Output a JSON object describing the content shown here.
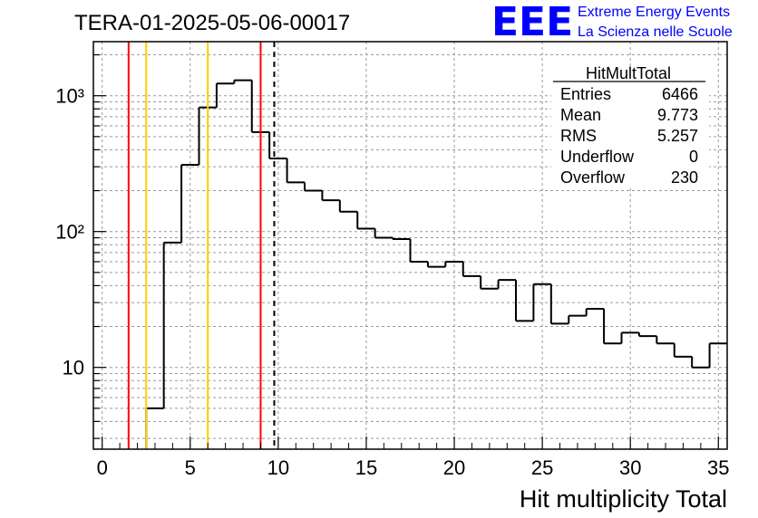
{
  "header": {
    "run_title": "TERA-01-2025-05-06-00017",
    "logo_text": "EEE",
    "logo_line1": "Extreme Energy Events",
    "logo_line2": "La Scienza nelle Scuole"
  },
  "stats_box": {
    "title": "HitMultTotal",
    "rows": [
      {
        "label": "Entries",
        "value": "6466"
      },
      {
        "label": "Mean",
        "value": "9.773"
      },
      {
        "label": "RMS",
        "value": "5.257"
      },
      {
        "label": "Underflow",
        "value": "0"
      },
      {
        "label": "Overflow",
        "value": "230"
      }
    ]
  },
  "chart_data": {
    "type": "histogram",
    "title": "TERA-01-2025-05-06-00017",
    "xlabel": "Hit multiplicity Total",
    "ylabel": "",
    "y_scale": "log",
    "xlim": [
      -0.5,
      35.5
    ],
    "ylim": [
      2.5,
      2500
    ],
    "grid": true,
    "x_ticks": [
      0,
      5,
      10,
      15,
      20,
      25,
      30,
      35
    ],
    "y_ticks": [
      {
        "value": 10,
        "label": "10"
      },
      {
        "value": 100,
        "label": "10²"
      },
      {
        "value": 1000,
        "label": "10³"
      }
    ],
    "bin_edges": [
      -0.5,
      0.5,
      1.5,
      2.5,
      3.5,
      4.5,
      5.5,
      6.5,
      7.5,
      8.5,
      9.5,
      10.5,
      11.5,
      12.5,
      13.5,
      14.5,
      15.5,
      16.5,
      17.5,
      18.5,
      19.5,
      20.5,
      21.5,
      22.5,
      23.5,
      24.5,
      25.5,
      26.5,
      27.5,
      28.5,
      29.5,
      30.5,
      31.5,
      32.5,
      33.5,
      34.5,
      35.5
    ],
    "counts": [
      0,
      0,
      0,
      5,
      83,
      310,
      820,
      1230,
      1300,
      540,
      345,
      230,
      200,
      170,
      140,
      105,
      90,
      88,
      60,
      55,
      60,
      47,
      38,
      44,
      22,
      41,
      21,
      24,
      27,
      15,
      18,
      17,
      15,
      12,
      10,
      15
    ],
    "vertical_markers": [
      {
        "x": 1.5,
        "color": "#ff0000",
        "style": "solid"
      },
      {
        "x": 2.5,
        "color": "#ffcc00",
        "style": "solid"
      },
      {
        "x": 6.0,
        "color": "#ffcc00",
        "style": "solid"
      },
      {
        "x": 9.0,
        "color": "#ff0000",
        "style": "solid"
      },
      {
        "x": 9.773,
        "color": "#000000",
        "style": "dashed"
      }
    ],
    "legend": "top-right"
  }
}
